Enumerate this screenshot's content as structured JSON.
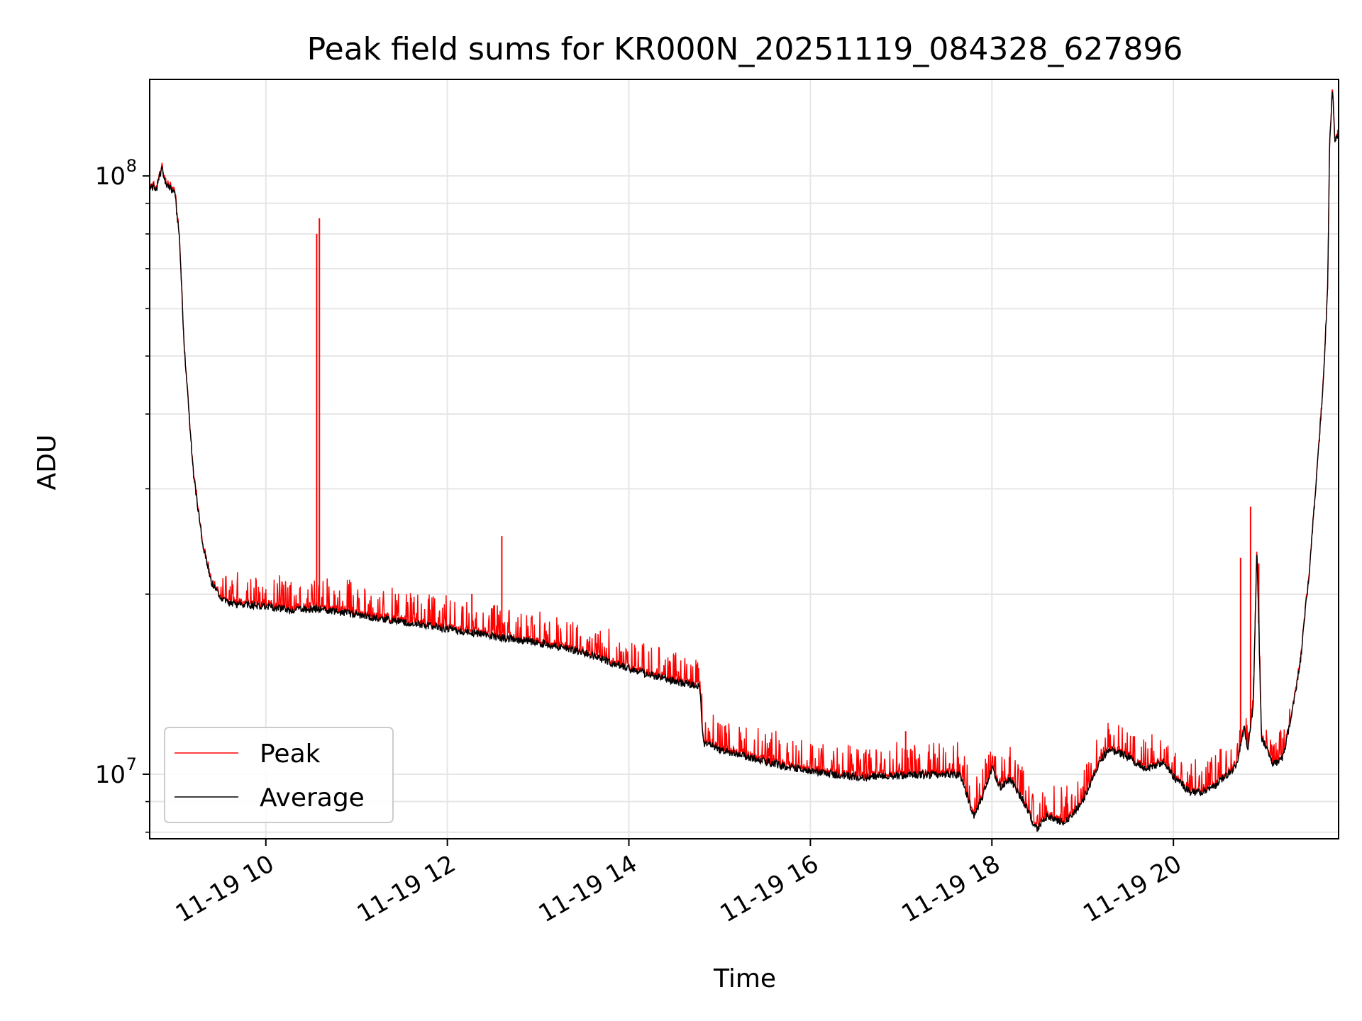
{
  "chart_data": {
    "type": "line",
    "title": "Peak field sums for KR000N_20251119_084328_627896",
    "xlabel": "Time",
    "ylabel": "ADU",
    "yscale": "log",
    "ylim": [
      7800000,
      145000000
    ],
    "xlim_hours": [
      8.72,
      21.82
    ],
    "x_unit": "hours of day 2025-11-19",
    "x_ticks": [
      {
        "hour": 10,
        "label": "11-19 10"
      },
      {
        "hour": 12,
        "label": "11-19 12"
      },
      {
        "hour": 14,
        "label": "11-19 14"
      },
      {
        "hour": 16,
        "label": "11-19 16"
      },
      {
        "hour": 18,
        "label": "11-19 18"
      },
      {
        "hour": 20,
        "label": "11-19 20"
      }
    ],
    "y_major_ticks": [
      {
        "value": 10000000,
        "base": "10",
        "exp": "7"
      },
      {
        "value": 100000000,
        "base": "10",
        "exp": "8"
      }
    ],
    "y_minor_ticks": [
      8000000,
      9000000,
      20000000,
      30000000,
      40000000,
      50000000,
      60000000,
      70000000,
      80000000,
      90000000
    ],
    "grid": true,
    "legend": {
      "position": "lower-left",
      "entries": [
        {
          "name": "Peak",
          "color": "#ff0000"
        },
        {
          "name": "Average",
          "color": "#000000"
        }
      ]
    },
    "series": [
      {
        "name": "Average",
        "color": "#000000",
        "x": [
          8.72,
          8.8,
          8.85,
          8.9,
          9.0,
          9.05,
          9.1,
          9.2,
          9.3,
          9.4,
          9.5,
          9.6,
          9.75,
          10.0,
          10.3,
          10.55,
          11.0,
          11.5,
          12.0,
          12.5,
          13.0,
          13.5,
          14.0,
          14.5,
          14.78,
          14.82,
          15.0,
          15.5,
          16.0,
          16.5,
          17.0,
          17.5,
          17.65,
          17.72,
          17.8,
          17.9,
          18.0,
          18.1,
          18.2,
          18.35,
          18.45,
          18.5,
          18.6,
          18.8,
          19.0,
          19.2,
          19.3,
          19.5,
          19.7,
          19.9,
          20.0,
          20.2,
          20.4,
          20.6,
          20.7,
          20.78,
          20.82,
          20.88,
          20.92,
          20.97,
          21.1,
          21.2,
          21.3,
          21.4,
          21.5,
          21.6,
          21.65,
          21.7,
          21.72,
          21.75,
          21.78,
          21.82
        ],
        "y": [
          96000000,
          95500000,
          103000000,
          97000000,
          93000000,
          78000000,
          52000000,
          32000000,
          24500000,
          21000000,
          19700000,
          19300000,
          19200000,
          19100000,
          18800000,
          18900000,
          18500000,
          18000000,
          17500000,
          17000000,
          16600000,
          16000000,
          15000000,
          14300000,
          14000000,
          11300000,
          11000000,
          10500000,
          10100000,
          9900000,
          9950000,
          10000000,
          10000000,
          9300000,
          8500000,
          9200000,
          10200000,
          9500000,
          9800000,
          9000000,
          8300000,
          8100000,
          8500000,
          8300000,
          9000000,
          10600000,
          11000000,
          10700000,
          10200000,
          10500000,
          9900000,
          9300000,
          9400000,
          10000000,
          10400000,
          12000000,
          11000000,
          13000000,
          24000000,
          11500000,
          10400000,
          10600000,
          12500000,
          15500000,
          22000000,
          35000000,
          45000000,
          65000000,
          110000000,
          140000000,
          115000000,
          118000000
        ]
      },
      {
        "name": "Peak",
        "color": "#ff0000",
        "spikes": [
          {
            "x": 10.56,
            "y": 80000000
          },
          {
            "x": 10.59,
            "y": 85000000
          },
          {
            "x": 12.6,
            "y": 25000000
          },
          {
            "x": 12.27,
            "y": 20000000
          },
          {
            "x": 17.05,
            "y": 11800000
          },
          {
            "x": 20.74,
            "y": 23000000
          },
          {
            "x": 20.85,
            "y": 28000000
          },
          {
            "x": 20.94,
            "y": 22500000
          }
        ]
      }
    ]
  }
}
